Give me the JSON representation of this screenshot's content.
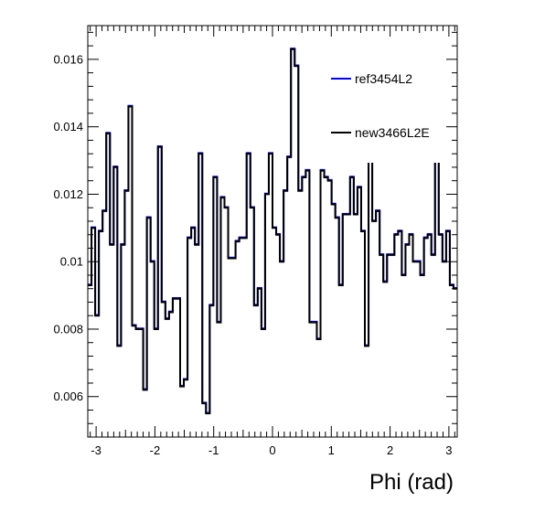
{
  "chart_data": {
    "type": "line",
    "title": "",
    "xlabel": "Phi (rad)",
    "ylabel": "",
    "xlim": [
      -3.1416,
      3.1416
    ],
    "ylim": [
      0.0048,
      0.017
    ],
    "x_ticks": [
      -3,
      -2,
      -1,
      0,
      1,
      2,
      3
    ],
    "y_ticks": [
      0.006,
      0.008,
      0.01,
      0.012,
      0.014,
      0.016
    ],
    "x_tick_labels": [
      "-3",
      "-2",
      "-1",
      "0",
      "1",
      "2",
      "3"
    ],
    "y_tick_labels": [
      "0.006",
      "0.008",
      "0.01",
      "0.012",
      "0.014",
      "0.016"
    ],
    "grid": false,
    "legend_position": "top-right",
    "bins": 100,
    "series": [
      {
        "name": "ref3454L2",
        "color": "#0000ff",
        "style": "step",
        "values": [
          0.0093,
          0.011,
          0.0084,
          0.0109,
          0.0115,
          0.0138,
          0.0105,
          0.0128,
          0.0075,
          0.0105,
          0.0121,
          0.0146,
          0.0081,
          0.008,
          0.008,
          0.0062,
          0.0113,
          0.01,
          0.008,
          0.0134,
          0.0088,
          0.0083,
          0.0085,
          0.0089,
          0.0089,
          0.0063,
          0.0065,
          0.0107,
          0.011,
          0.0105,
          0.0132,
          0.0058,
          0.0055,
          0.0087,
          0.0125,
          0.0082,
          0.0119,
          0.0116,
          0.0101,
          0.0101,
          0.0106,
          0.0107,
          0.0107,
          0.0132,
          0.0116,
          0.0087,
          0.0092,
          0.008,
          0.012,
          0.0132,
          0.011,
          0.0108,
          0.01,
          0.0121,
          0.0131,
          0.0163,
          0.0158,
          0.0121,
          0.0125,
          0.0127,
          0.0082,
          0.0082,
          0.0077,
          0.0127,
          0.0125,
          0.0124,
          0.0117,
          0.0113,
          0.0093,
          0.0114,
          0.0114,
          0.0125,
          0.0114,
          0.0122,
          0.0109,
          0.0075,
          0.014,
          0.0112,
          0.0115,
          0.0102,
          0.0094,
          0.0102,
          0.0102,
          0.0108,
          0.0109,
          0.0096,
          0.0105,
          0.0108,
          0.01,
          0.01,
          0.0096,
          0.0107,
          0.0108,
          0.0102,
          0.0136,
          0.0108,
          0.01,
          0.0109,
          0.0093,
          0.0092
        ],
        "draw_shift": 2e-05
      },
      {
        "name": "new3466L2E",
        "color": "#000000",
        "style": "step",
        "values": [
          0.0093,
          0.011,
          0.0084,
          0.0109,
          0.0115,
          0.0138,
          0.0105,
          0.0128,
          0.0075,
          0.0105,
          0.0121,
          0.0146,
          0.0081,
          0.008,
          0.008,
          0.0062,
          0.0113,
          0.01,
          0.008,
          0.0134,
          0.0088,
          0.0083,
          0.0085,
          0.0089,
          0.0089,
          0.0063,
          0.0065,
          0.0107,
          0.011,
          0.0105,
          0.0132,
          0.0058,
          0.0055,
          0.0087,
          0.0125,
          0.0082,
          0.0119,
          0.0116,
          0.0101,
          0.0101,
          0.0106,
          0.0107,
          0.0107,
          0.0132,
          0.0116,
          0.0087,
          0.0092,
          0.008,
          0.012,
          0.0132,
          0.011,
          0.0108,
          0.01,
          0.0121,
          0.0131,
          0.0163,
          0.0158,
          0.0121,
          0.0125,
          0.0127,
          0.0082,
          0.0082,
          0.0077,
          0.0127,
          0.0125,
          0.0124,
          0.0117,
          0.0113,
          0.0093,
          0.0114,
          0.0114,
          0.0125,
          0.0114,
          0.0122,
          0.0109,
          0.0075,
          0.014,
          0.0112,
          0.0115,
          0.0102,
          0.0094,
          0.0102,
          0.0102,
          0.0108,
          0.0109,
          0.0096,
          0.0105,
          0.0108,
          0.01,
          0.01,
          0.0096,
          0.0107,
          0.0108,
          0.0102,
          0.0136,
          0.0108,
          0.01,
          0.0109,
          0.0093,
          0.0092
        ]
      }
    ]
  }
}
